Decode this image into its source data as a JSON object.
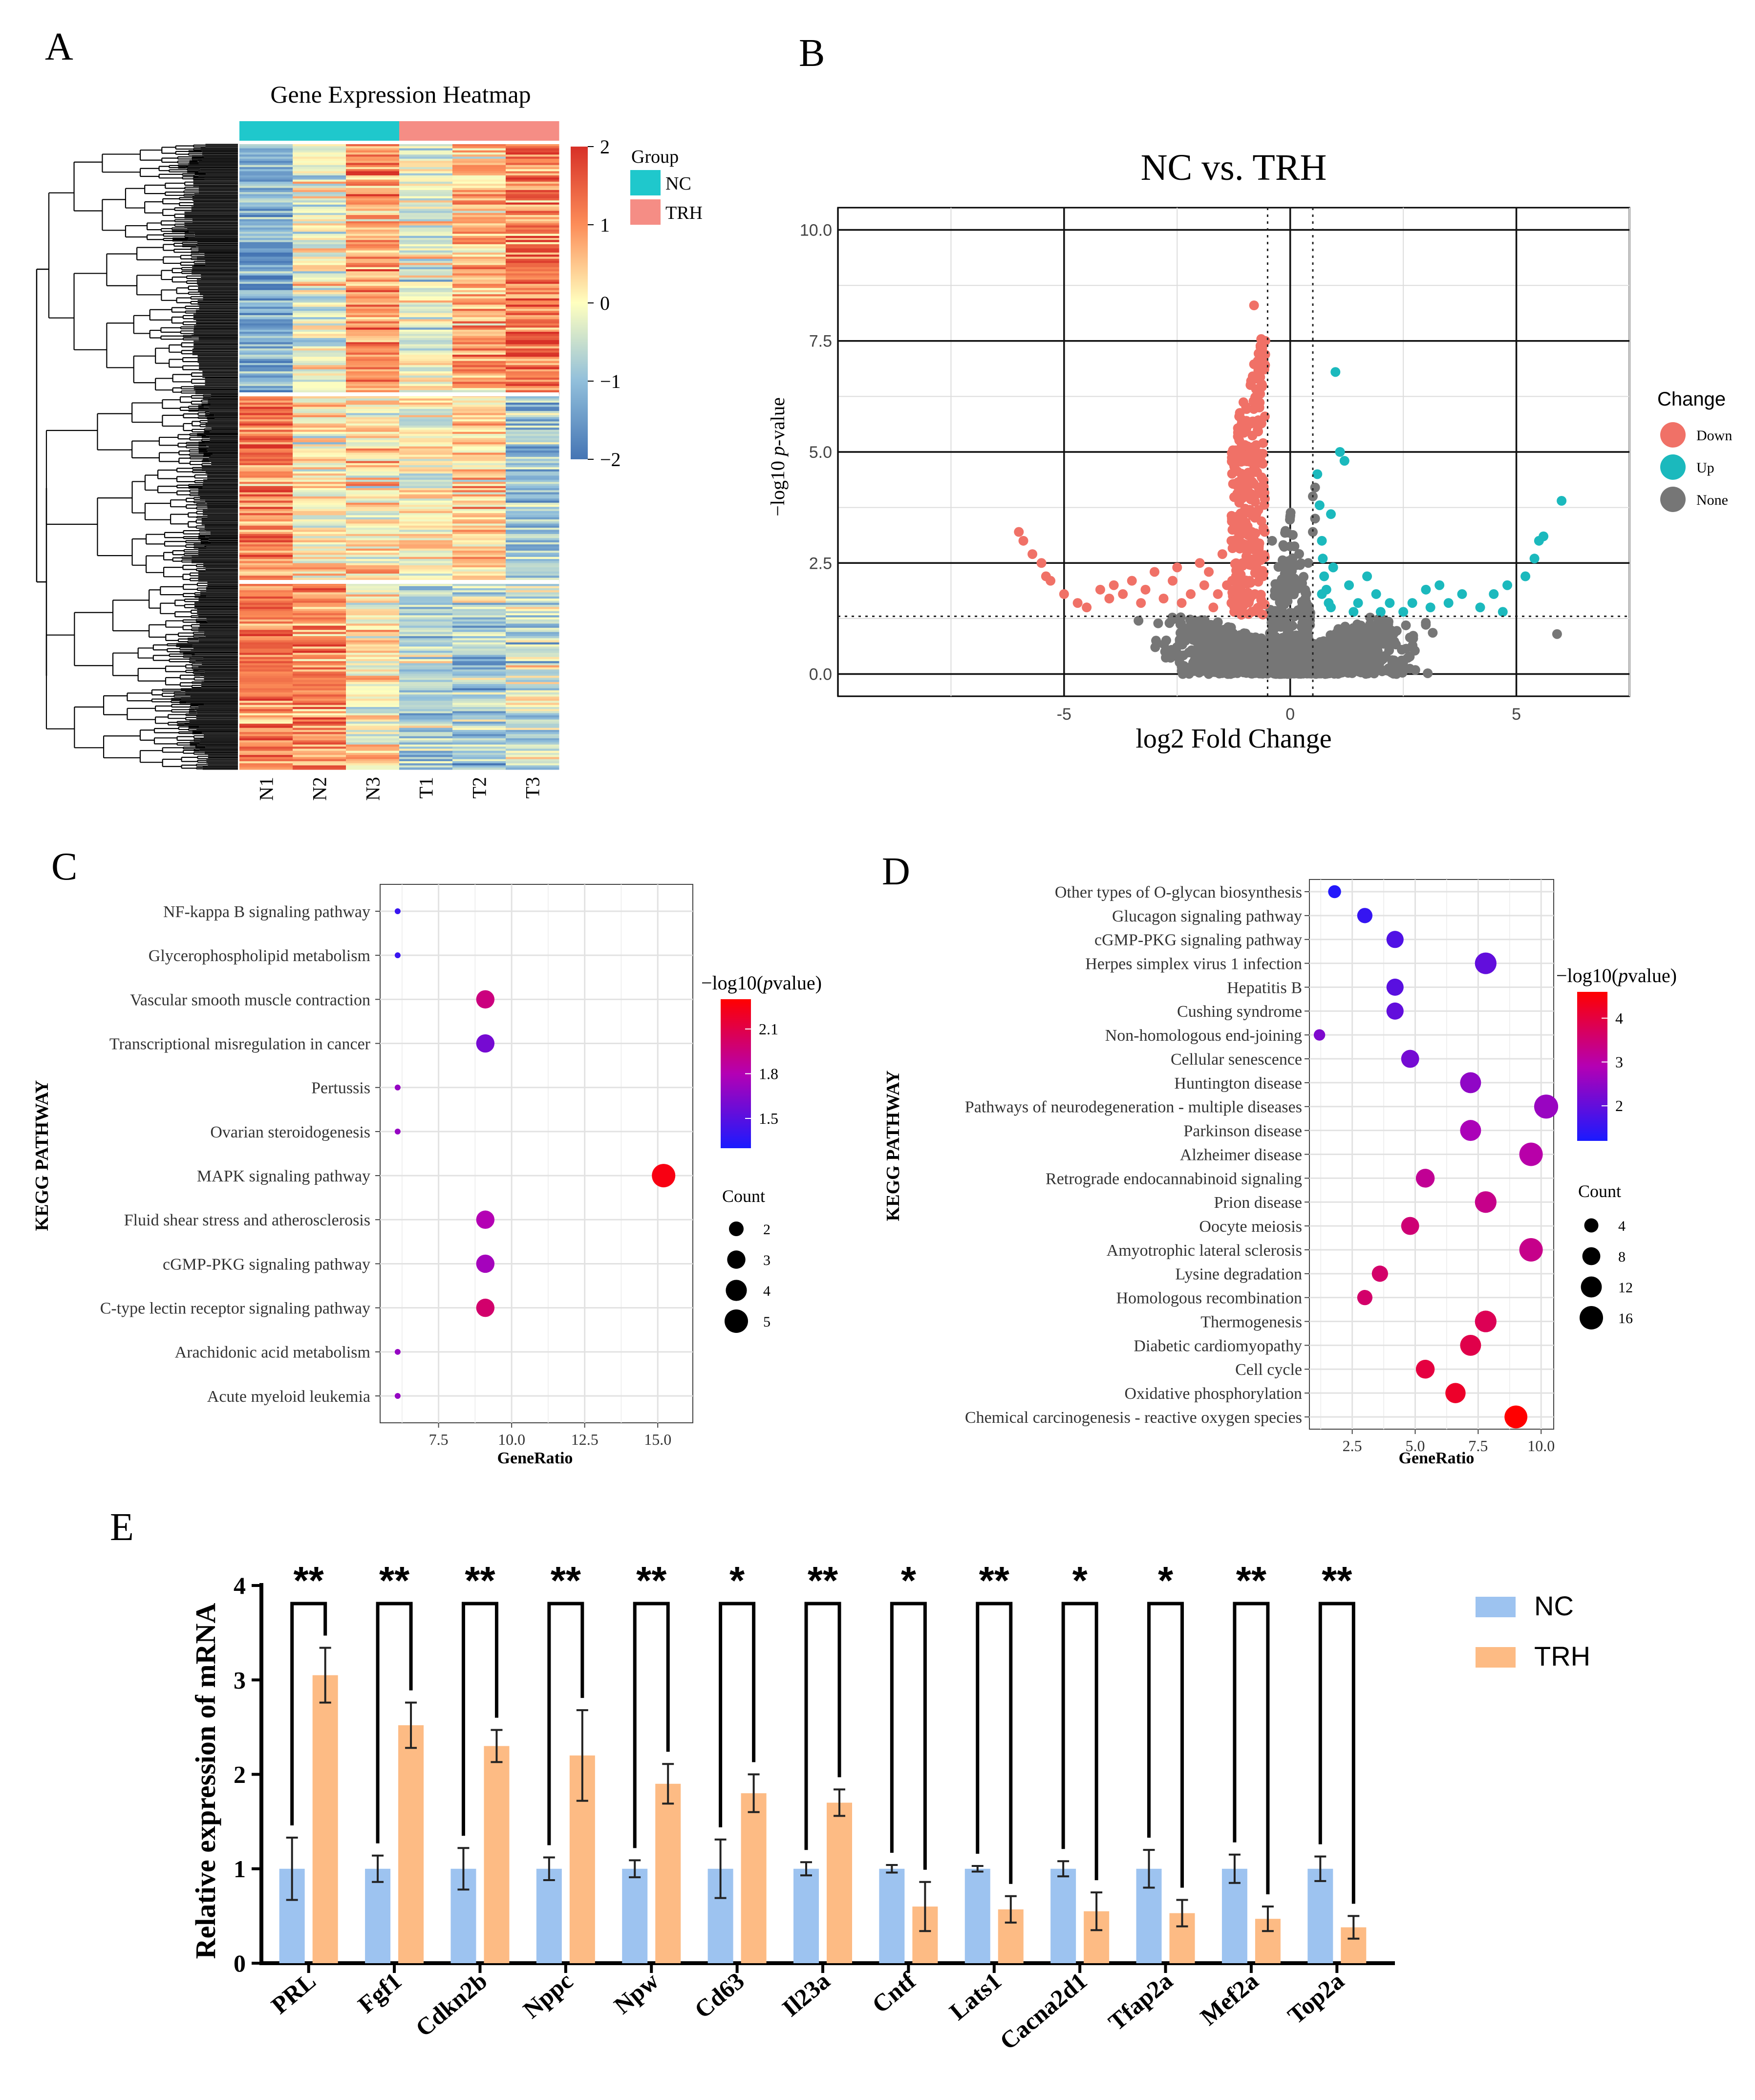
{
  "panel_labels": [
    "A",
    "B",
    "C",
    "D",
    "E"
  ],
  "chart_data": [
    {
      "panel": "A",
      "type": "heatmap",
      "title": "Gene Expression Heatmap",
      "columns": [
        "N1",
        "N2",
        "N3",
        "T1",
        "T2",
        "T3"
      ],
      "column_groups": [
        "NC",
        "NC",
        "NC",
        "TRH",
        "TRH",
        "TRH"
      ],
      "group_legend": {
        "title": "Group",
        "items": [
          {
            "name": "NC",
            "color": "#1fc8cc"
          },
          {
            "name": "TRH",
            "color": "#f58d85"
          }
        ]
      },
      "color_scale": {
        "min": -2,
        "max": 2,
        "ticks": [
          "2",
          "1",
          "0",
          "−1",
          "−2"
        ],
        "colors": [
          "#4575b4",
          "#91bfdb",
          "#ffffbf",
          "#fc8d59",
          "#d73027"
        ]
      },
      "row_clusters": [
        {
          "name": "cluster-1",
          "pattern": [
            -1.2,
            -0.2,
            0.9,
            -0.3,
            0.6,
            1.2
          ]
        },
        {
          "name": "cluster-2",
          "pattern": [
            1.1,
            0.1,
            0.3,
            0.0,
            0.4,
            -0.9
          ]
        },
        {
          "name": "cluster-3",
          "pattern": [
            1.2,
            1.0,
            0.2,
            -0.6,
            -0.8,
            -0.4
          ]
        }
      ]
    },
    {
      "panel": "B",
      "type": "scatter",
      "title": "NC vs. TRH",
      "xlabel": "log2 Fold Change",
      "ylabel_prefix": "−log10 ",
      "ylabel_italic": "p",
      "ylabel_suffix": "-value",
      "xlim": [
        -10,
        7.5
      ],
      "ylim": [
        -0.5,
        10.5
      ],
      "xticks": [
        "-5",
        "0",
        "5"
      ],
      "yticks": [
        "0.0",
        "2.5",
        "5.0",
        "7.5",
        "10.0"
      ],
      "thresholds": {
        "log2fc": 0.5,
        "neglog10p": 1.3
      },
      "legend": {
        "title": "Change",
        "items": [
          {
            "name": "Down",
            "color": "#f07167"
          },
          {
            "name": "Up",
            "color": "#1bb9bd"
          },
          {
            "name": "None",
            "color": "#767676"
          }
        ]
      },
      "series": [
        {
          "name": "Down",
          "color": "#f07167",
          "points": [
            [
              -6.0,
              3.2
            ],
            [
              -5.9,
              3.0
            ],
            [
              -5.7,
              2.7
            ],
            [
              -5.5,
              2.5
            ],
            [
              -5.4,
              2.2
            ],
            [
              -5.3,
              2.1
            ],
            [
              -5.0,
              1.8
            ],
            [
              -4.7,
              1.6
            ],
            [
              -4.5,
              1.5
            ],
            [
              -4.2,
              1.9
            ],
            [
              -4.0,
              1.7
            ],
            [
              -3.9,
              2.0
            ],
            [
              -3.7,
              1.8
            ],
            [
              -3.5,
              2.1
            ],
            [
              -3.3,
              1.6
            ],
            [
              -3.2,
              1.9
            ],
            [
              -3.0,
              2.3
            ],
            [
              -2.8,
              1.7
            ],
            [
              -2.6,
              2.1
            ],
            [
              -2.4,
              1.6
            ],
            [
              -2.2,
              1.8
            ],
            [
              -2.0,
              2.5
            ],
            [
              -1.9,
              2.0
            ],
            [
              -1.8,
              2.3
            ],
            [
              -1.6,
              1.8
            ],
            [
              -1.5,
              2.7
            ],
            [
              -1.4,
              2.0
            ],
            [
              -1.3,
              3.0
            ],
            [
              -1.2,
              2.2
            ],
            [
              -1.1,
              3.5
            ],
            [
              -1.05,
              2.5
            ],
            [
              -1.0,
              4.0
            ],
            [
              -0.95,
              2.8
            ],
            [
              -0.9,
              4.5
            ],
            [
              -0.85,
              3.2
            ],
            [
              -0.8,
              5.0
            ],
            [
              -0.75,
              3.6
            ],
            [
              -0.72,
              5.5
            ],
            [
              -0.7,
              4.2
            ],
            [
              -0.68,
              6.0
            ],
            [
              -0.65,
              4.8
            ],
            [
              -0.62,
              6.5
            ],
            [
              -0.6,
              5.2
            ],
            [
              -0.58,
              7.0
            ],
            [
              -0.56,
              5.8
            ],
            [
              -0.55,
              7.5
            ],
            [
              -0.8,
              8.3
            ],
            [
              -0.9,
              2.1
            ],
            [
              -1.3,
              1.6
            ],
            [
              -0.7,
              1.5
            ],
            [
              -0.6,
              2.2
            ],
            [
              -1.1,
              1.7
            ],
            [
              -0.85,
              1.4
            ],
            [
              -2.5,
              2.4
            ],
            [
              -1.7,
              1.5
            ]
          ]
        },
        {
          "name": "Up",
          "color": "#1bb9bd",
          "points": [
            [
              0.6,
              4.5
            ],
            [
              0.65,
              3.8
            ],
            [
              0.7,
              3.0
            ],
            [
              0.72,
              2.6
            ],
            [
              0.75,
              2.2
            ],
            [
              0.8,
              1.9
            ],
            [
              0.85,
              1.6
            ],
            [
              0.9,
              3.6
            ],
            [
              0.95,
              2.4
            ],
            [
              1.0,
              6.8
            ],
            [
              1.1,
              5.0
            ],
            [
              1.2,
              4.8
            ],
            [
              1.3,
              2.0
            ],
            [
              1.5,
              1.6
            ],
            [
              1.7,
              2.2
            ],
            [
              1.9,
              1.8
            ],
            [
              2.0,
              1.4
            ],
            [
              2.2,
              1.6
            ],
            [
              2.5,
              1.4
            ],
            [
              2.7,
              1.6
            ],
            [
              3.0,
              1.9
            ],
            [
              3.1,
              1.5
            ],
            [
              3.3,
              2.0
            ],
            [
              3.5,
              1.6
            ],
            [
              3.8,
              1.8
            ],
            [
              4.2,
              1.5
            ],
            [
              4.5,
              1.8
            ],
            [
              4.7,
              1.4
            ],
            [
              4.8,
              2.0
            ],
            [
              5.2,
              2.2
            ],
            [
              5.4,
              2.6
            ],
            [
              5.5,
              3.0
            ],
            [
              5.6,
              3.1
            ],
            [
              6.0,
              3.9
            ],
            [
              0.9,
              1.5
            ],
            [
              0.7,
              1.8
            ],
            [
              1.4,
              1.4
            ]
          ]
        },
        {
          "name": "None",
          "color": "#767676",
          "points": [
            [
              5.9,
              0.9
            ],
            [
              0.55,
              3.5
            ],
            [
              0.55,
              4.2
            ],
            [
              -0.4,
              3.0
            ],
            [
              0.4,
              2.5
            ],
            [
              0.5,
              4.0
            ],
            [
              0.5,
              3.2
            ]
          ]
        }
      ]
    },
    {
      "panel": "C",
      "type": "scatter",
      "subtype": "dotplot",
      "xlabel": "GeneRatio",
      "ylabel": "KEGG PATHWAY",
      "xlim": [
        5.5,
        16.2
      ],
      "xticks": [
        "7.5",
        "10.0",
        "12.5",
        "15.0"
      ],
      "categories": [
        "NF-kappa B signaling pathway",
        "Glycerophospholipid metabolism",
        "Vascular smooth muscle contraction",
        "Transcriptional misregulation in cancer",
        "Pertussis",
        "Ovarian steroidogenesis",
        "MAPK signaling pathway",
        "Fluid shear stress and atherosclerosis",
        "cGMP-PKG signaling pathway",
        "C-type lectin receptor signaling pathway",
        "Arachidonic acid metabolism",
        "Acute myeloid leukemia"
      ],
      "gene_ratio": [
        6.1,
        6.1,
        9.1,
        9.1,
        6.1,
        6.1,
        15.2,
        9.1,
        9.1,
        9.1,
        6.1,
        6.1
      ],
      "count": [
        1,
        1,
        3,
        3,
        1,
        1,
        5,
        3,
        3,
        3,
        1,
        1
      ],
      "neglog10_pvalue": [
        1.4,
        1.4,
        1.95,
        1.6,
        1.7,
        1.7,
        2.25,
        1.8,
        1.75,
        2.0,
        1.7,
        1.7
      ],
      "color_legend": {
        "title_prefix": "−log10(",
        "title_italic": "p",
        "title_suffix": "value)",
        "min": 1.3,
        "max": 2.3,
        "ticks": [
          2.1,
          1.8,
          1.5
        ],
        "tick_labels": [
          "2.1",
          "1.8",
          "1.5"
        ]
      },
      "size_legend": {
        "title": "Count",
        "values": [
          2,
          3,
          4,
          5
        ],
        "labels": [
          "2",
          "3",
          "4",
          "5"
        ]
      }
    },
    {
      "panel": "D",
      "type": "scatter",
      "subtype": "dotplot",
      "xlabel": "GeneRatio",
      "ylabel": "KEGG PATHWAY",
      "xlim": [
        0.8,
        10.5
      ],
      "xticks": [
        "2.5",
        "5.0",
        "7.5",
        "10.0"
      ],
      "categories": [
        "Other types of O-glycan biosynthesis",
        "Glucagon signaling pathway",
        "cGMP-PKG signaling pathway",
        "Herpes simplex virus 1 infection",
        "Hepatitis B",
        "Cushing syndrome",
        "Non-homologous end-joining",
        "Cellular senescence",
        "Huntington disease",
        "Pathways of neurodegeneration - multiple diseases",
        "Parkinson disease",
        "Alzheimer disease",
        "Retrograde endocannabinoid signaling",
        "Prion disease",
        "Oocyte meiosis",
        "Amyotrophic lateral sclerosis",
        "Lysine degradation",
        "Homologous recombination",
        "Thermogenesis",
        "Diabetic cardiomyopathy",
        "Cell cycle",
        "Oxidative phosphorylation",
        "Chemical carcinogenesis - reactive oxygen species"
      ],
      "gene_ratio": [
        1.8,
        3.0,
        4.2,
        7.8,
        4.2,
        4.2,
        1.2,
        4.8,
        7.2,
        10.2,
        7.2,
        9.6,
        5.4,
        7.8,
        4.8,
        9.6,
        3.6,
        3.0,
        7.8,
        7.2,
        5.4,
        6.6,
        9.0
      ],
      "count": [
        3,
        5,
        7,
        13,
        7,
        7,
        2,
        8,
        12,
        17,
        12,
        16,
        9,
        13,
        8,
        16,
        6,
        5,
        13,
        12,
        9,
        11,
        15
      ],
      "neglog10_pvalue": [
        1.3,
        1.5,
        1.8,
        2.0,
        1.9,
        2.0,
        2.3,
        2.2,
        2.5,
        2.6,
        2.8,
        3.0,
        3.2,
        3.3,
        3.5,
        3.3,
        3.6,
        3.6,
        3.8,
        3.9,
        4.0,
        4.2,
        4.6
      ],
      "color_legend": {
        "title_prefix": "−log10(",
        "title_italic": "p",
        "title_suffix": "value)",
        "min": 1.2,
        "max": 4.6,
        "ticks": [
          4,
          3,
          2
        ],
        "tick_labels": [
          "4",
          "3",
          "2"
        ]
      },
      "size_legend": {
        "title": "Count",
        "values": [
          4,
          8,
          12,
          16
        ],
        "labels": [
          "4",
          "8",
          "12",
          "16"
        ]
      }
    },
    {
      "panel": "E",
      "type": "bar",
      "ylabel": "Relative expression of mRNA",
      "ylim": [
        0,
        4
      ],
      "yticks": [
        "0",
        "1",
        "2",
        "3",
        "4"
      ],
      "categories": [
        "PRL",
        "Fgf1",
        "Cdkn2b",
        "Nppc",
        "Npw",
        "Cd63",
        "Il23a",
        "Cntf",
        "Lats1",
        "Cacna2d1",
        "Tfap2a",
        "Mef2a",
        "Top2a"
      ],
      "series": [
        {
          "name": "NC",
          "color": "#9dc3f0",
          "values": [
            1,
            1,
            1,
            1,
            1,
            1,
            1,
            1,
            1,
            1,
            1,
            1,
            1
          ],
          "errors": [
            0.33,
            0.14,
            0.22,
            0.12,
            0.09,
            0.31,
            0.07,
            0.04,
            0.03,
            0.08,
            0.2,
            0.15,
            0.13
          ]
        },
        {
          "name": "TRH",
          "color": "#fdbb84",
          "values": [
            3.05,
            2.52,
            2.3,
            2.2,
            1.9,
            1.8,
            1.7,
            0.6,
            0.57,
            0.55,
            0.53,
            0.47,
            0.38
          ],
          "errors": [
            0.29,
            0.24,
            0.17,
            0.48,
            0.21,
            0.2,
            0.14,
            0.26,
            0.14,
            0.2,
            0.14,
            0.13,
            0.12
          ]
        }
      ],
      "significance": [
        "**",
        "**",
        "**",
        "**",
        "**",
        "*",
        "**",
        "*",
        "**",
        "*",
        "*",
        "**",
        "**"
      ]
    }
  ]
}
